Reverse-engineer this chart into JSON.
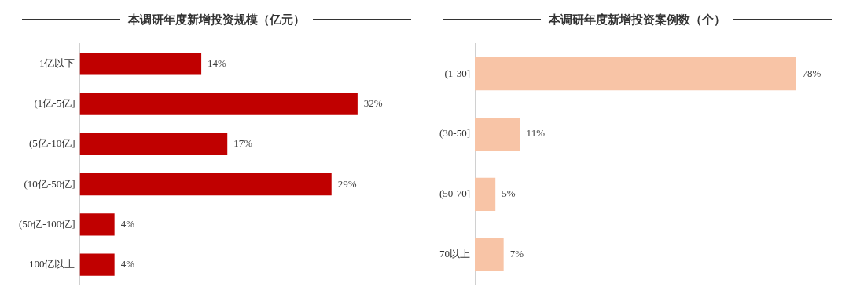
{
  "chart_data": [
    {
      "type": "bar",
      "orientation": "horizontal",
      "title": "本调研年度新增投资规模（亿元）",
      "categories": [
        "1亿以下",
        "(1亿-5亿]",
        "(5亿-10亿]",
        "(10亿-50亿]",
        "(50亿-100亿]",
        "100亿以上"
      ],
      "values": [
        14,
        32,
        17,
        29,
        4,
        4
      ],
      "value_labels": [
        "14%",
        "32%",
        "17%",
        "29%",
        "4%",
        "4%"
      ],
      "color": "#c00000",
      "tick_labels": "y"
    },
    {
      "type": "bar",
      "orientation": "horizontal",
      "title": "本调研年度新增投资案例数（个）",
      "categories": [
        "(1-30]",
        "(30-50]",
        "(50-70]",
        "70以上"
      ],
      "values": [
        78,
        11,
        5,
        7
      ],
      "value_labels": [
        "78%",
        "11%",
        "5%",
        "7%"
      ],
      "color": "#f8c4a6",
      "tick_labels": "y"
    }
  ]
}
